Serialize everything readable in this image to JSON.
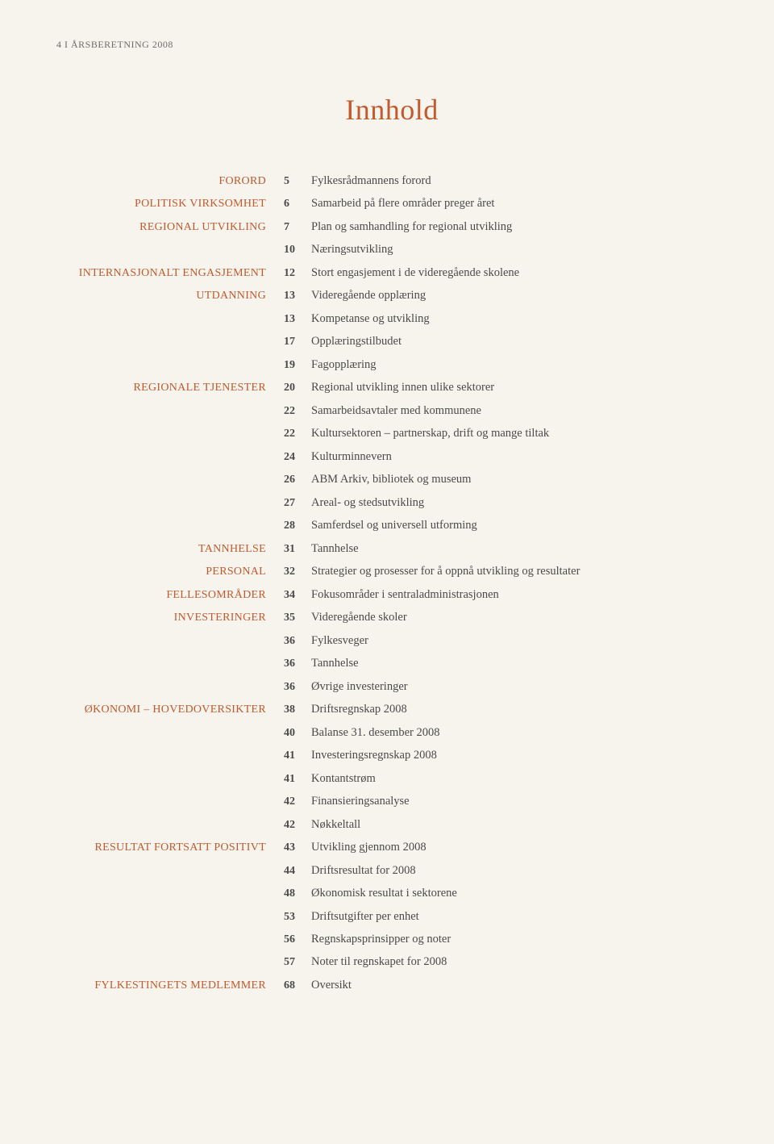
{
  "header": "4  I  ÅRSBERETNING 2008",
  "title": "Innhold",
  "title_color": "#c15a2e",
  "section_color": "#c15a2e",
  "text_color": "#4a4a4a",
  "background_color": "#f7f4ee",
  "rows": [
    {
      "section": "FORORD",
      "page": "5",
      "desc": "Fylkesrådmannens forord"
    },
    {
      "section": "POLITISK VIRKSOMHET",
      "page": "6",
      "desc": "Samarbeid på flere områder preger året"
    },
    {
      "section": "REGIONAL UTVIKLING",
      "page": "7",
      "desc": "Plan og samhandling for regional utvikling"
    },
    {
      "section": "",
      "page": "10",
      "desc": "Næringsutvikling"
    },
    {
      "section": "INTERNASJONALT ENGASJEMENT",
      "page": "12",
      "desc": "Stort engasjement i de videregående skolene"
    },
    {
      "section": "UTDANNING",
      "page": "13",
      "desc": "Videregående opplæring"
    },
    {
      "section": "",
      "page": "13",
      "desc": "Kompetanse og utvikling"
    },
    {
      "section": "",
      "page": "17",
      "desc": "Opplæringstilbudet"
    },
    {
      "section": "",
      "page": "19",
      "desc": "Fagopplæring"
    },
    {
      "section": "REGIONALE TJENESTER",
      "page": "20",
      "desc": "Regional utvikling innen ulike sektorer"
    },
    {
      "section": "",
      "page": "22",
      "desc": "Samarbeidsavtaler med kommunene"
    },
    {
      "section": "",
      "page": "22",
      "desc": "Kultursektoren – partnerskap, drift og mange tiltak"
    },
    {
      "section": "",
      "page": "24",
      "desc": "Kulturminnevern"
    },
    {
      "section": "",
      "page": "26",
      "desc": "ABM Arkiv, bibliotek og museum"
    },
    {
      "section": "",
      "page": "27",
      "desc": "Areal- og stedsutvikling"
    },
    {
      "section": "",
      "page": "28",
      "desc": "Samferdsel og universell utforming"
    },
    {
      "section": "TANNHELSE",
      "page": "31",
      "desc": "Tannhelse"
    },
    {
      "section": "PERSONAL",
      "page": "32",
      "desc": "Strategier og prosesser for å oppnå utvikling og resultater"
    },
    {
      "section": "FELLESOMRÅDER",
      "page": "34",
      "desc": "Fokusområder i sentraladministrasjonen"
    },
    {
      "section": "INVESTERINGER",
      "page": "35",
      "desc": "Videregående skoler"
    },
    {
      "section": "",
      "page": "36",
      "desc": "Fylkesveger"
    },
    {
      "section": "",
      "page": "36",
      "desc": "Tannhelse"
    },
    {
      "section": "",
      "page": "36",
      "desc": "Øvrige investeringer"
    },
    {
      "section": "ØKONOMI – HOVEDOVERSIKTER",
      "page": "38",
      "desc": "Driftsregnskap 2008"
    },
    {
      "section": "",
      "page": "40",
      "desc": "Balanse 31. desember 2008"
    },
    {
      "section": "",
      "page": "41",
      "desc": "Investeringsregnskap 2008"
    },
    {
      "section": "",
      "page": "41",
      "desc": "Kontantstrøm"
    },
    {
      "section": "",
      "page": "42",
      "desc": "Finansieringsanalyse"
    },
    {
      "section": "",
      "page": "42",
      "desc": "Nøkkeltall"
    },
    {
      "section": "RESULTAT FORTSATT POSITIVT",
      "page": "43",
      "desc": "Utvikling gjennom 2008"
    },
    {
      "section": "",
      "page": "44",
      "desc": "Driftsresultat for 2008"
    },
    {
      "section": "",
      "page": "48",
      "desc": "Økonomisk resultat i sektorene"
    },
    {
      "section": "",
      "page": "53",
      "desc": "Driftsutgifter per enhet"
    },
    {
      "section": "",
      "page": "56",
      "desc": "Regnskapsprinsipper og noter"
    },
    {
      "section": "",
      "page": "57",
      "desc": "Noter til regnskapet for 2008"
    },
    {
      "section": "FYLKESTINGETS MEDLEMMER",
      "page": "68",
      "desc": "Oversikt"
    }
  ]
}
